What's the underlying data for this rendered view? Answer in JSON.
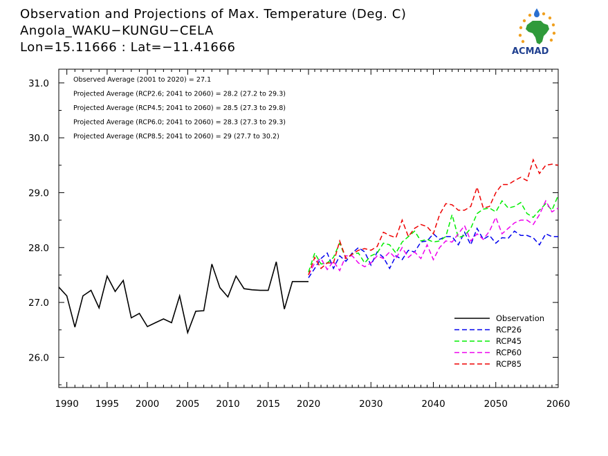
{
  "title": {
    "line1": "Observation and Projections of Max. Temperature (Deg. C)",
    "line2": "Angola_WAKU−KUNGU−CELA",
    "line3": "Lon=15.11666 : Lat=−11.41666"
  },
  "logo": {
    "text": "ACMAD",
    "icon": "acmad-africa-logo"
  },
  "annotations": [
    "Observed Average (2001 to 2020) = 27.1",
    "Projected Average (RCP2.6; 2041 to 2060) = 28.2 (27.2 to 29.3)",
    "Projected Average (RCP4.5; 2041 to 2060) = 28.5 (27.3 to 29.8)",
    "Projected Average (RCP6.0; 2041 to 2060) = 28.3 (27.3 to 29.3)",
    "Projected Average (RCP8.5; 2041 to 2060) = 29 (27.7 to 30.2)"
  ],
  "chart_data": {
    "type": "line",
    "xlim": [
      1989,
      2060
    ],
    "ylim": [
      25.45,
      31.25
    ],
    "x_ticks": [
      1990,
      1995,
      2000,
      2005,
      2010,
      2015,
      2020,
      2030,
      2040,
      2050,
      2060
    ],
    "x_tick_labels": [
      "1990",
      "1995",
      "2000",
      "2005",
      "2010",
      "2015",
      "2020",
      "2030",
      "2040",
      "2050",
      "2060"
    ],
    "y_ticks": [
      26.0,
      27.0,
      28.0,
      29.0,
      30.0,
      31.0
    ],
    "y_tick_labels": [
      "26.0",
      "27.0",
      "28.0",
      "29.0",
      "30.0",
      "31.0"
    ],
    "grid": false,
    "legend_position": "bottom-right",
    "series": [
      {
        "name": "Observation",
        "color": "#000000",
        "dash": "solid",
        "x": [
          1989,
          1990,
          1991,
          1992,
          1993,
          1994,
          1995,
          1996,
          1997,
          1998,
          1999,
          2000,
          2001,
          2002,
          2003,
          2004,
          2005,
          2006,
          2007,
          2008,
          2009,
          2010,
          2011,
          2012,
          2013,
          2014,
          2015,
          2016,
          2017,
          2018,
          2019,
          2020
        ],
        "y": [
          27.28,
          27.12,
          26.55,
          27.12,
          27.22,
          26.9,
          27.48,
          27.2,
          27.4,
          26.72,
          26.8,
          26.56,
          26.63,
          26.7,
          26.63,
          27.12,
          26.45,
          26.84,
          26.85,
          27.7,
          27.27,
          27.1,
          27.48,
          27.25,
          27.23,
          27.22,
          27.22,
          27.74,
          26.88,
          27.38,
          27.38,
          27.38
        ]
      },
      {
        "name": "RCP26",
        "color": "#0000ee",
        "dash": "dashed",
        "x": [
          2020,
          2021,
          2022,
          2023,
          2024,
          2025,
          2026,
          2027,
          2028,
          2029,
          2030,
          2031,
          2032,
          2033,
          2034,
          2035,
          2036,
          2037,
          2038,
          2039,
          2040,
          2041,
          2042,
          2043,
          2044,
          2045,
          2046,
          2047,
          2048,
          2049,
          2050,
          2051,
          2052,
          2053,
          2054,
          2055,
          2056,
          2057,
          2058,
          2059,
          2060
        ],
        "y": [
          27.45,
          27.62,
          27.8,
          27.9,
          27.62,
          27.85,
          27.75,
          27.9,
          28.0,
          27.92,
          27.68,
          27.92,
          27.82,
          27.62,
          27.85,
          27.78,
          27.95,
          27.92,
          28.1,
          28.12,
          28.25,
          28.15,
          28.2,
          28.2,
          28.05,
          28.28,
          28.05,
          28.35,
          28.15,
          28.22,
          28.08,
          28.18,
          28.17,
          28.3,
          28.22,
          28.22,
          28.18,
          28.05,
          28.25,
          28.2,
          28.2
        ]
      },
      {
        "name": "RCP45",
        "color": "#00ee00",
        "dash": "dashed",
        "x": [
          2020,
          2021,
          2022,
          2023,
          2024,
          2025,
          2026,
          2027,
          2028,
          2029,
          2030,
          2031,
          2032,
          2033,
          2034,
          2035,
          2036,
          2037,
          2038,
          2039,
          2040,
          2041,
          2042,
          2043,
          2044,
          2045,
          2046,
          2047,
          2048,
          2049,
          2050,
          2051,
          2052,
          2053,
          2054,
          2055,
          2056,
          2057,
          2058,
          2059,
          2060
        ],
        "y": [
          27.55,
          27.9,
          27.7,
          27.72,
          27.82,
          28.08,
          27.8,
          27.88,
          27.9,
          27.72,
          27.85,
          27.9,
          28.08,
          28.05,
          27.9,
          28.1,
          28.2,
          28.3,
          28.12,
          28.15,
          28.1,
          28.12,
          28.2,
          28.6,
          28.18,
          28.22,
          28.35,
          28.62,
          28.7,
          28.72,
          28.65,
          28.85,
          28.72,
          28.75,
          28.82,
          28.62,
          28.55,
          28.68,
          28.8,
          28.68,
          28.95
        ]
      },
      {
        "name": "RCP60",
        "color": "#ee00ee",
        "dash": "dashed",
        "x": [
          2020,
          2021,
          2022,
          2023,
          2024,
          2025,
          2026,
          2027,
          2028,
          2029,
          2030,
          2031,
          2032,
          2033,
          2034,
          2035,
          2036,
          2037,
          2038,
          2039,
          2040,
          2041,
          2042,
          2043,
          2044,
          2045,
          2046,
          2047,
          2048,
          2049,
          2050,
          2051,
          2052,
          2053,
          2054,
          2055,
          2056,
          2057,
          2058,
          2059,
          2060
        ],
        "y": [
          27.5,
          27.72,
          27.8,
          27.6,
          27.75,
          27.58,
          27.85,
          27.85,
          27.72,
          27.65,
          27.72,
          27.85,
          27.8,
          27.92,
          27.8,
          28.0,
          27.82,
          27.92,
          27.8,
          28.05,
          27.78,
          28.0,
          28.12,
          28.1,
          28.25,
          28.4,
          28.12,
          28.25,
          28.15,
          28.3,
          28.55,
          28.25,
          28.35,
          28.45,
          28.5,
          28.5,
          28.42,
          28.6,
          28.85,
          28.65,
          28.72
        ]
      },
      {
        "name": "RCP85",
        "color": "#ee0000",
        "dash": "dashed",
        "x": [
          2020,
          2021,
          2022,
          2023,
          2024,
          2025,
          2026,
          2027,
          2028,
          2029,
          2030,
          2031,
          2032,
          2033,
          2034,
          2035,
          2036,
          2037,
          2038,
          2039,
          2040,
          2041,
          2042,
          2043,
          2044,
          2045,
          2046,
          2047,
          2048,
          2049,
          2050,
          2051,
          2052,
          2053,
          2054,
          2055,
          2056,
          2057,
          2058,
          2059,
          2060
        ],
        "y": [
          27.5,
          27.82,
          27.62,
          27.72,
          27.72,
          28.12,
          27.8,
          27.88,
          27.95,
          27.98,
          27.95,
          28.02,
          28.28,
          28.22,
          28.18,
          28.5,
          28.2,
          28.35,
          28.42,
          28.38,
          28.25,
          28.6,
          28.8,
          28.78,
          28.68,
          28.68,
          28.75,
          29.1,
          28.72,
          28.75,
          29.0,
          29.15,
          29.15,
          29.22,
          29.28,
          29.22,
          29.6,
          29.35,
          29.5,
          29.52,
          29.5
        ]
      }
    ]
  }
}
